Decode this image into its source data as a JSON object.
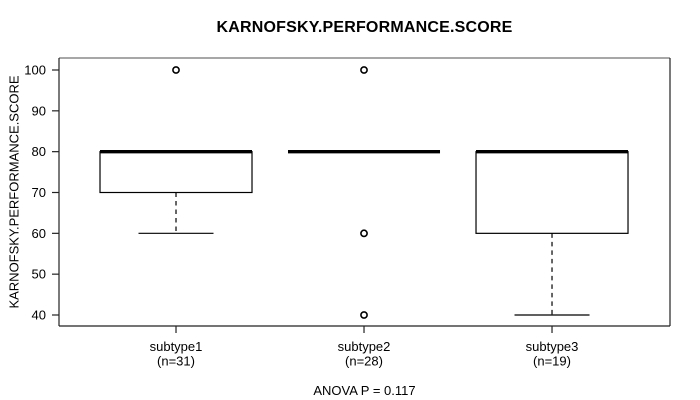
{
  "figure": {
    "background": "#ffffff"
  },
  "chart_data": {
    "type": "boxplot",
    "title": "KARNOFSKY.PERFORMANCE.SCORE",
    "ylabel": "KARNOFSKY.PERFORMANCE.SCORE",
    "xlabel": "",
    "annotation": "ANOVA P = 0.117",
    "ylim": [
      37,
      103
    ],
    "yticks": [
      40,
      50,
      60,
      70,
      80,
      90,
      100
    ],
    "grid": false,
    "legend": null,
    "groups": [
      {
        "label": "subtype1",
        "sublabel": "(n=31)",
        "n": 31,
        "q1": 70,
        "median": 80,
        "q3": 80,
        "whisker_low": 60,
        "whisker_high": 80,
        "outliers": [
          100
        ]
      },
      {
        "label": "subtype2",
        "sublabel": "(n=28)",
        "n": 28,
        "q1": 80,
        "median": 80,
        "q3": 80,
        "whisker_low": 80,
        "whisker_high": 80,
        "outliers": [
          100,
          60,
          40
        ]
      },
      {
        "label": "subtype3",
        "sublabel": "(n=19)",
        "n": 19,
        "q1": 60,
        "median": 80,
        "q3": 80,
        "whisker_low": 40,
        "whisker_high": 80,
        "outliers": []
      }
    ],
    "colors": {
      "line": "#000000",
      "box_fill": "#ffffff",
      "frame_top": "#8a8a8a",
      "frame_side": "#222222",
      "tick": "#222222",
      "background": "#ffffff"
    }
  }
}
